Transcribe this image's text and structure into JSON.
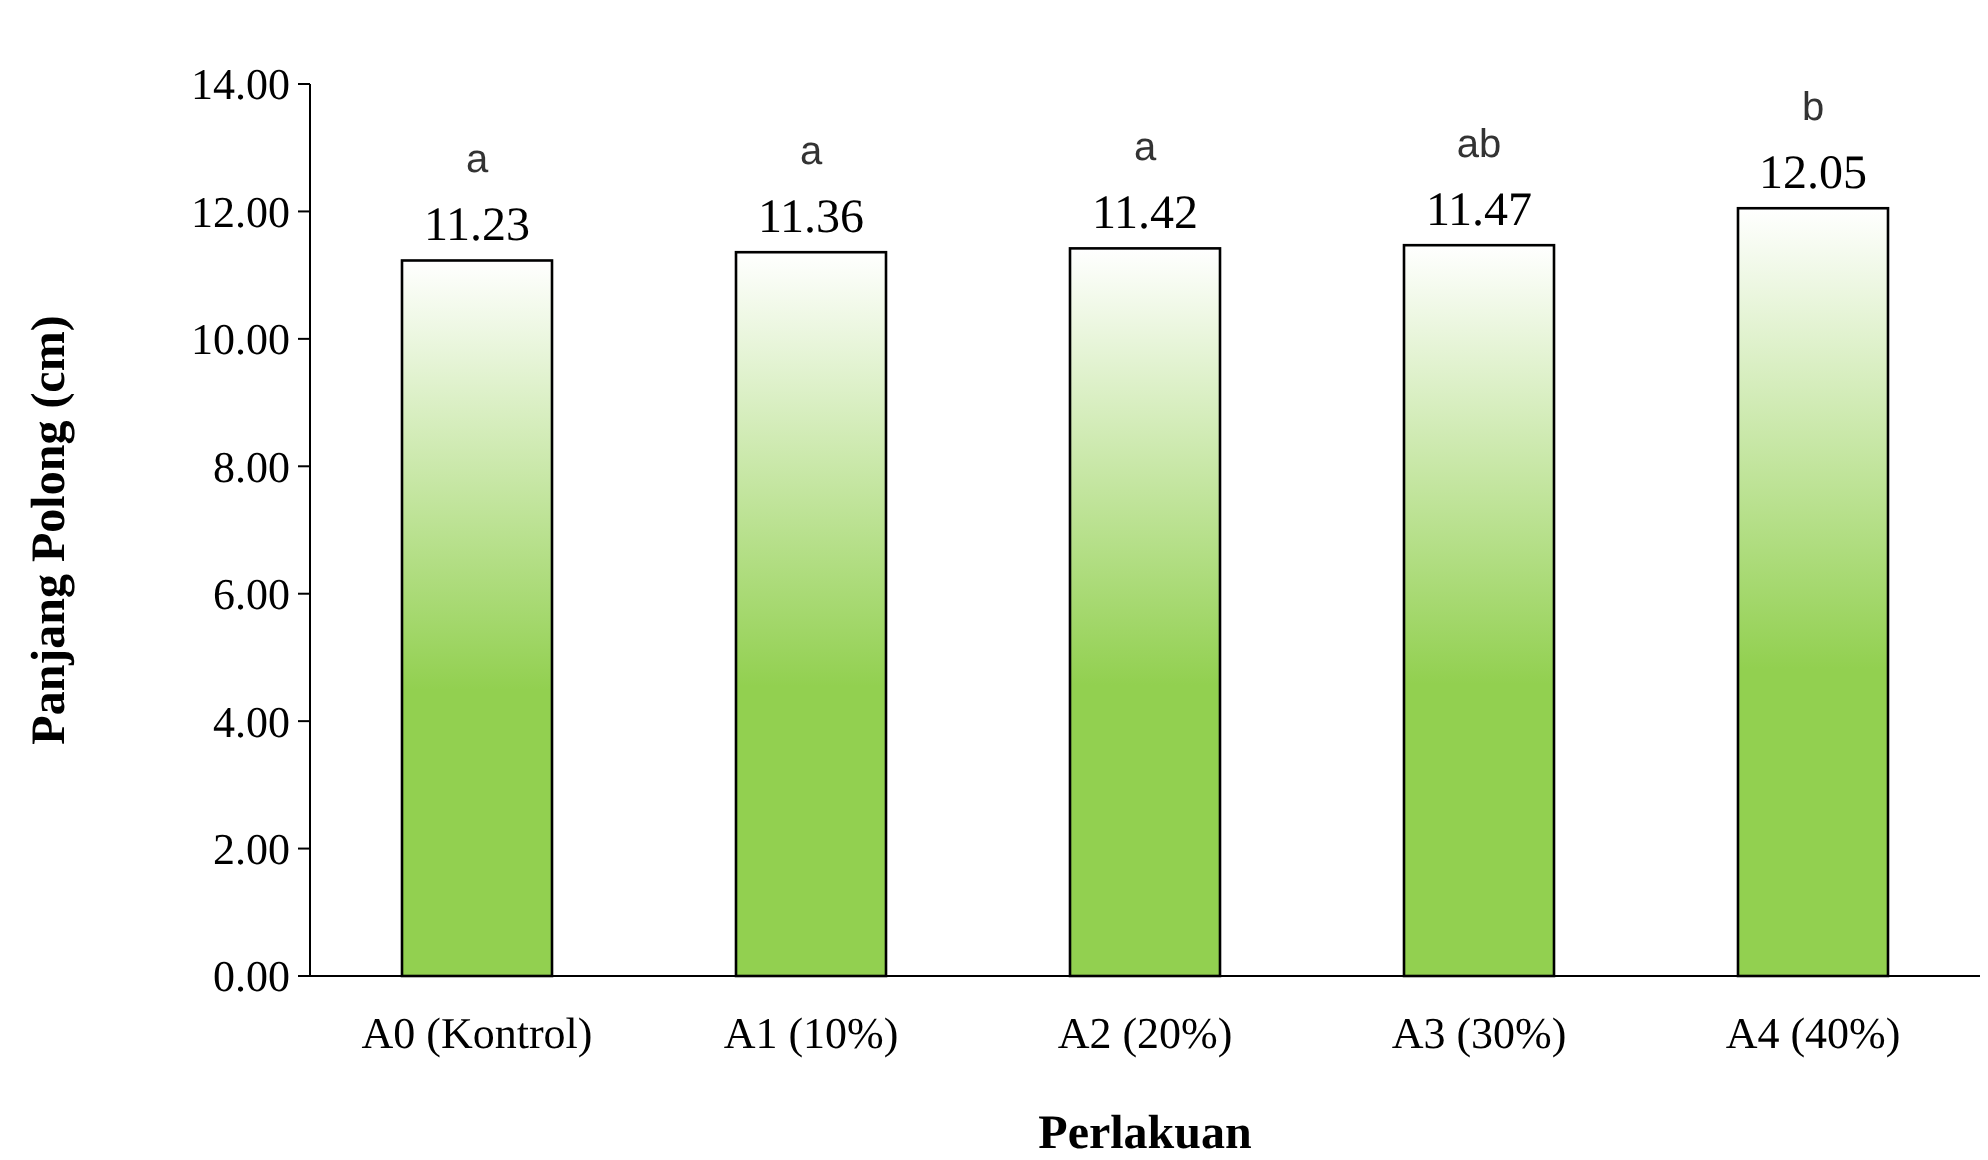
{
  "chart_data": {
    "type": "bar",
    "xlabel": "Perlakuan",
    "ylabel": "Panjang Polong (cm)",
    "categories": [
      "A0 (Kontrol)",
      "A1 (10%)",
      "A2 (20%)",
      "A3 (30%)",
      "A4 (40%)"
    ],
    "values": [
      11.23,
      11.36,
      11.42,
      11.47,
      12.05
    ],
    "color": "#92d050",
    "ylim": [
      0,
      14
    ],
    "yticks": [
      {
        "value": 0,
        "label": "0.00"
      },
      {
        "value": 2,
        "label": "2.00"
      },
      {
        "value": 4,
        "label": "4.00"
      },
      {
        "value": 6,
        "label": "6.00"
      },
      {
        "value": 8,
        "label": "8.00"
      },
      {
        "value": 10,
        "label": "10.00"
      },
      {
        "value": 12,
        "label": "12.00"
      },
      {
        "value": 14,
        "label": "14.00"
      }
    ],
    "data_labels": true,
    "grid": false,
    "annotations": [
      {
        "text": "a",
        "x": "A0 (Kontrol)",
        "y": 11.23
      },
      {
        "text": "a",
        "x": "A1 (10%)",
        "y": 11.36
      },
      {
        "text": "a",
        "x": "A2 (20%)",
        "y": 11.42
      },
      {
        "text": "ab",
        "x": "A3 (30%)",
        "y": 11.47
      },
      {
        "text": "b",
        "x": "A4 (40%)",
        "y": 12.05
      }
    ]
  }
}
